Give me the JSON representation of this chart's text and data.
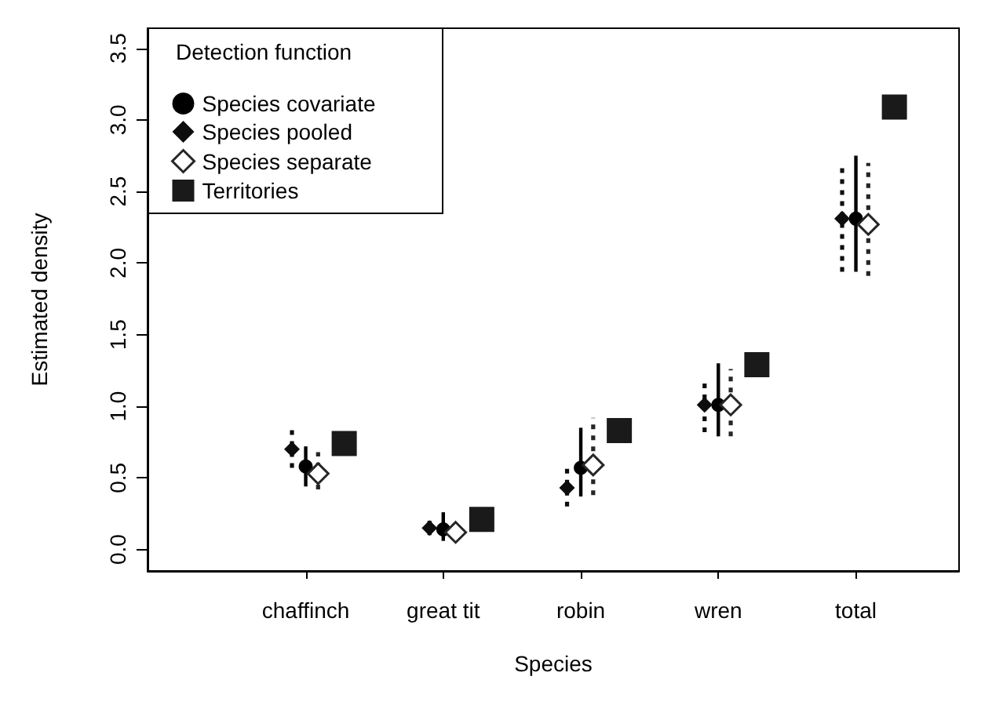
{
  "chart_data": {
    "type": "scatter",
    "xlabel": "Species",
    "ylabel": "Estimated density",
    "legend_title": "Detection function",
    "legend": "top left",
    "grid": false,
    "categories": [
      "chaffinch",
      "great tit",
      "robin",
      "wren",
      "total"
    ],
    "ylim": [
      -0.15,
      3.64
    ],
    "yticks": [
      {
        "value": 0,
        "label": "0.0"
      },
      0.5,
      {
        "value": 1,
        "label": "1.0"
      },
      1.5,
      {
        "value": 2,
        "label": "2.0"
      },
      2.5,
      {
        "value": 3,
        "label": "3.0"
      },
      3.5
    ],
    "series": [
      {
        "name": "Species covariate",
        "color": "#000000",
        "marker": "circle",
        "line_style": "solid",
        "values": [
          0.58,
          0.14,
          0.57,
          1.01,
          2.31
        ],
        "errors": [
          [
            0.44,
            0.72
          ],
          [
            0.06,
            0.26
          ],
          [
            0.37,
            0.85
          ],
          [
            0.79,
            1.3
          ],
          [
            1.94,
            2.75
          ]
        ]
      },
      {
        "name": "Species pooled",
        "color": "#0d0d0d",
        "marker": "diamond",
        "line_style": "dotted",
        "values": [
          0.7,
          0.15,
          0.43,
          1.01,
          2.31
        ],
        "errors": [
          [
            0.57,
            0.84
          ],
          [
            0.1,
            0.2
          ],
          [
            0.3,
            0.58
          ],
          [
            0.82,
            1.19
          ],
          [
            1.94,
            2.67
          ]
        ]
      },
      {
        "name": "Species separate",
        "color": "#262626",
        "marker": "diamond-open",
        "line_style": "dotted",
        "values": [
          0.53,
          0.12,
          0.59,
          1.01,
          2.27
        ],
        "errors": [
          [
            0.42,
            0.68
          ],
          [
            0.06,
            0.19
          ],
          [
            0.38,
            0.92
          ],
          [
            0.79,
            1.26
          ],
          [
            1.91,
            2.7
          ]
        ]
      },
      {
        "name": "Territories",
        "color": "#1a1a1a",
        "marker": "square",
        "values": [
          0.74,
          0.21,
          0.83,
          1.29,
          3.09
        ]
      }
    ]
  }
}
